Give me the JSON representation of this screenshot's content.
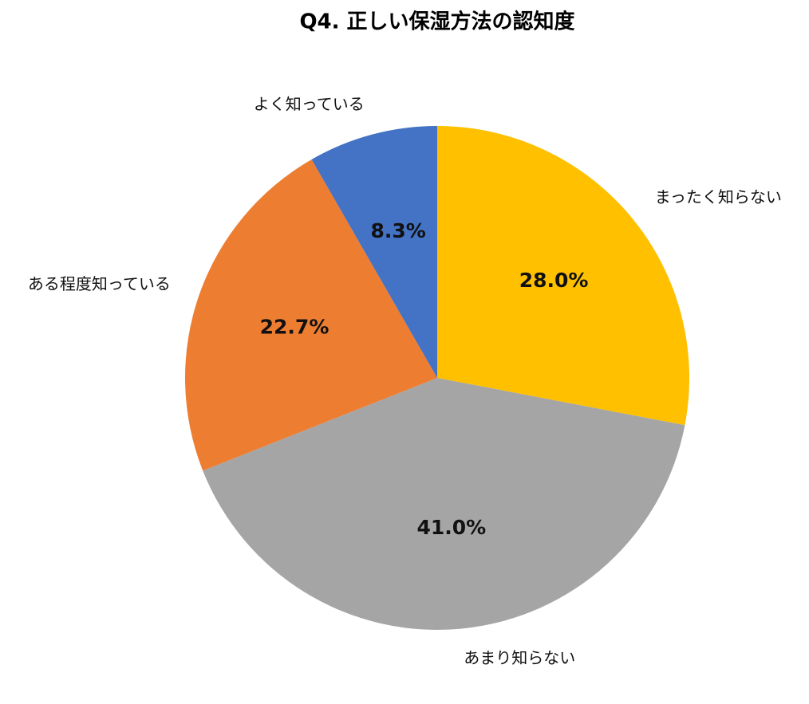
{
  "chart_data": {
    "type": "pie",
    "title": "Q4. 正しい保湿方法の認知度",
    "categories": [
      "まったく知らない",
      "あまり知らない",
      "ある程度知っている",
      "よく知っている"
    ],
    "values": [
      28.0,
      41.0,
      22.7,
      8.3
    ],
    "value_labels": [
      "28.0%",
      "41.0%",
      "22.7%",
      "8.3%"
    ],
    "colors": [
      "#FFC000",
      "#A5A5A5",
      "#ED7D31",
      "#4472C4"
    ]
  }
}
